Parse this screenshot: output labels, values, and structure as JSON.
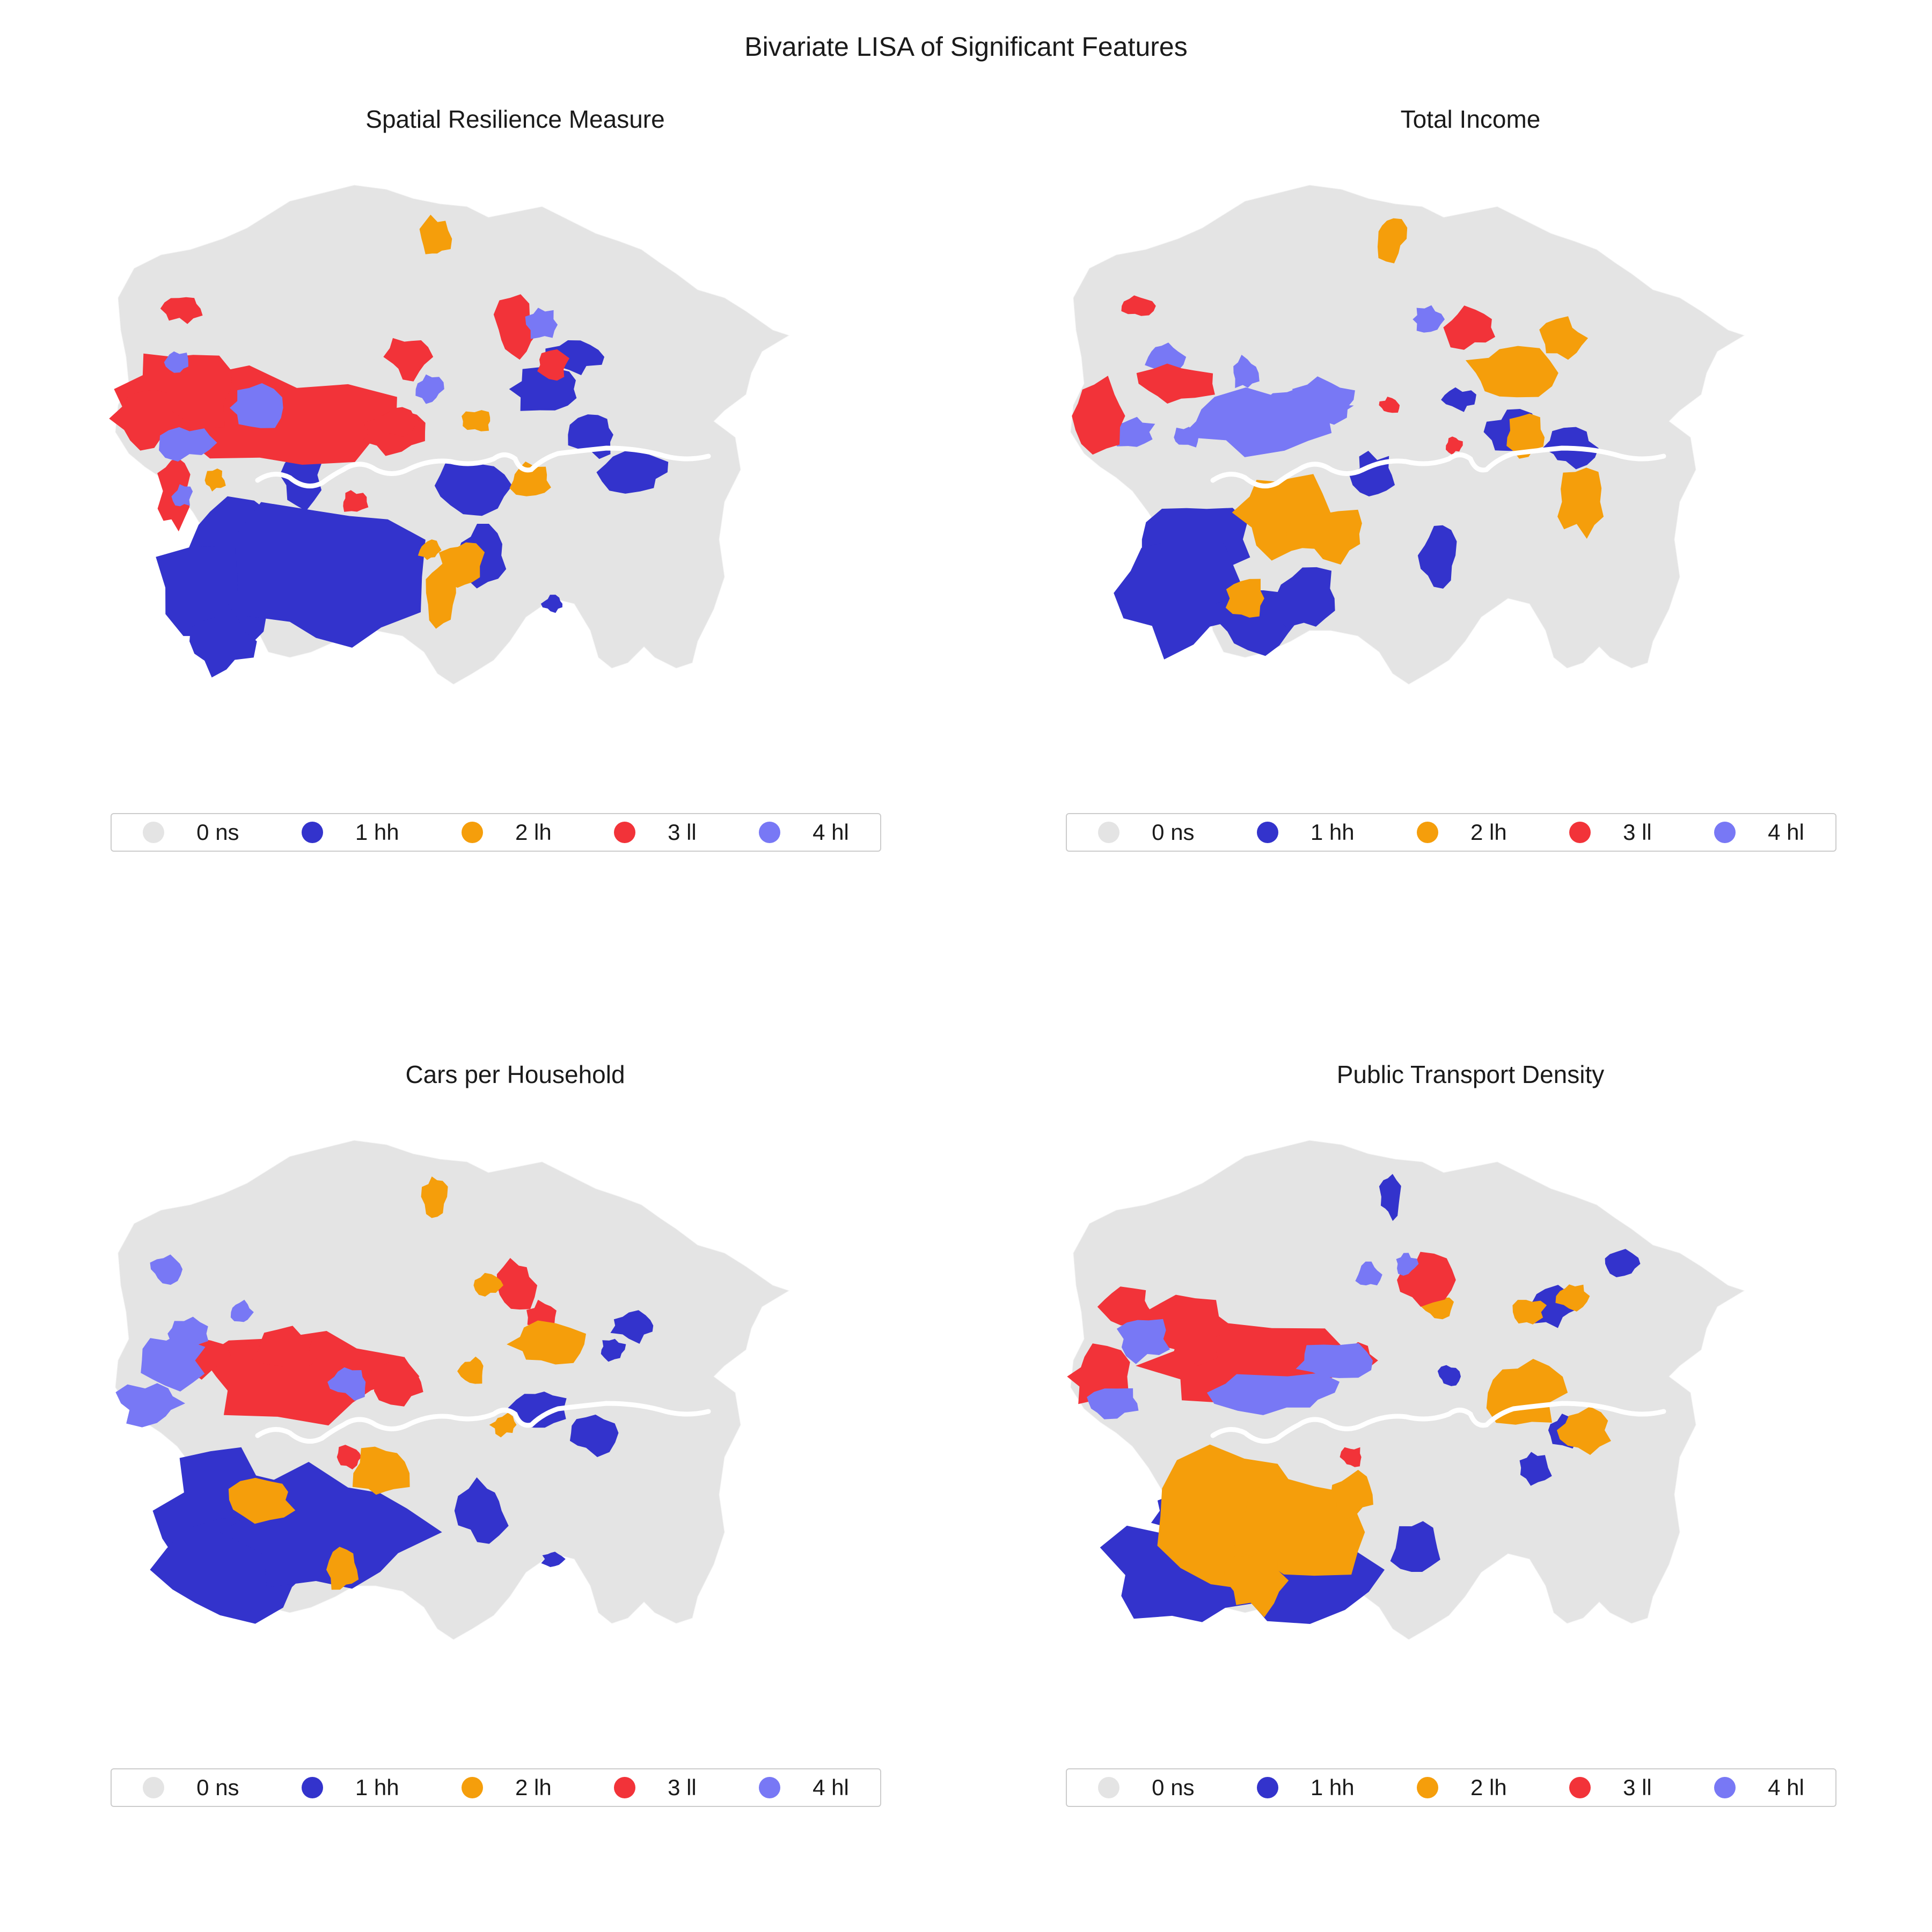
{
  "figure_title": "Bivariate LISA of Significant Features",
  "colors": {
    "ns": "#e4e4e4",
    "hh": "#3333cc",
    "lh": "#f59e0b",
    "ll": "#f23339",
    "hl": "#7878f5",
    "river": "#ffffff"
  },
  "legend": [
    {
      "key": "ns",
      "label": "0 ns"
    },
    {
      "key": "hh",
      "label": "1 hh"
    },
    {
      "key": "lh",
      "label": "2 lh"
    },
    {
      "key": "ll",
      "label": "3 ll"
    },
    {
      "key": "hl",
      "label": "4 hl"
    }
  ],
  "panels": [
    {
      "id": "p1",
      "title": "Spatial Resilience Measure"
    },
    {
      "id": "p2",
      "title": "Total Income"
    },
    {
      "id": "p3",
      "title": "Cars per Household"
    },
    {
      "id": "p4",
      "title": "Public Transport Density"
    }
  ]
}
